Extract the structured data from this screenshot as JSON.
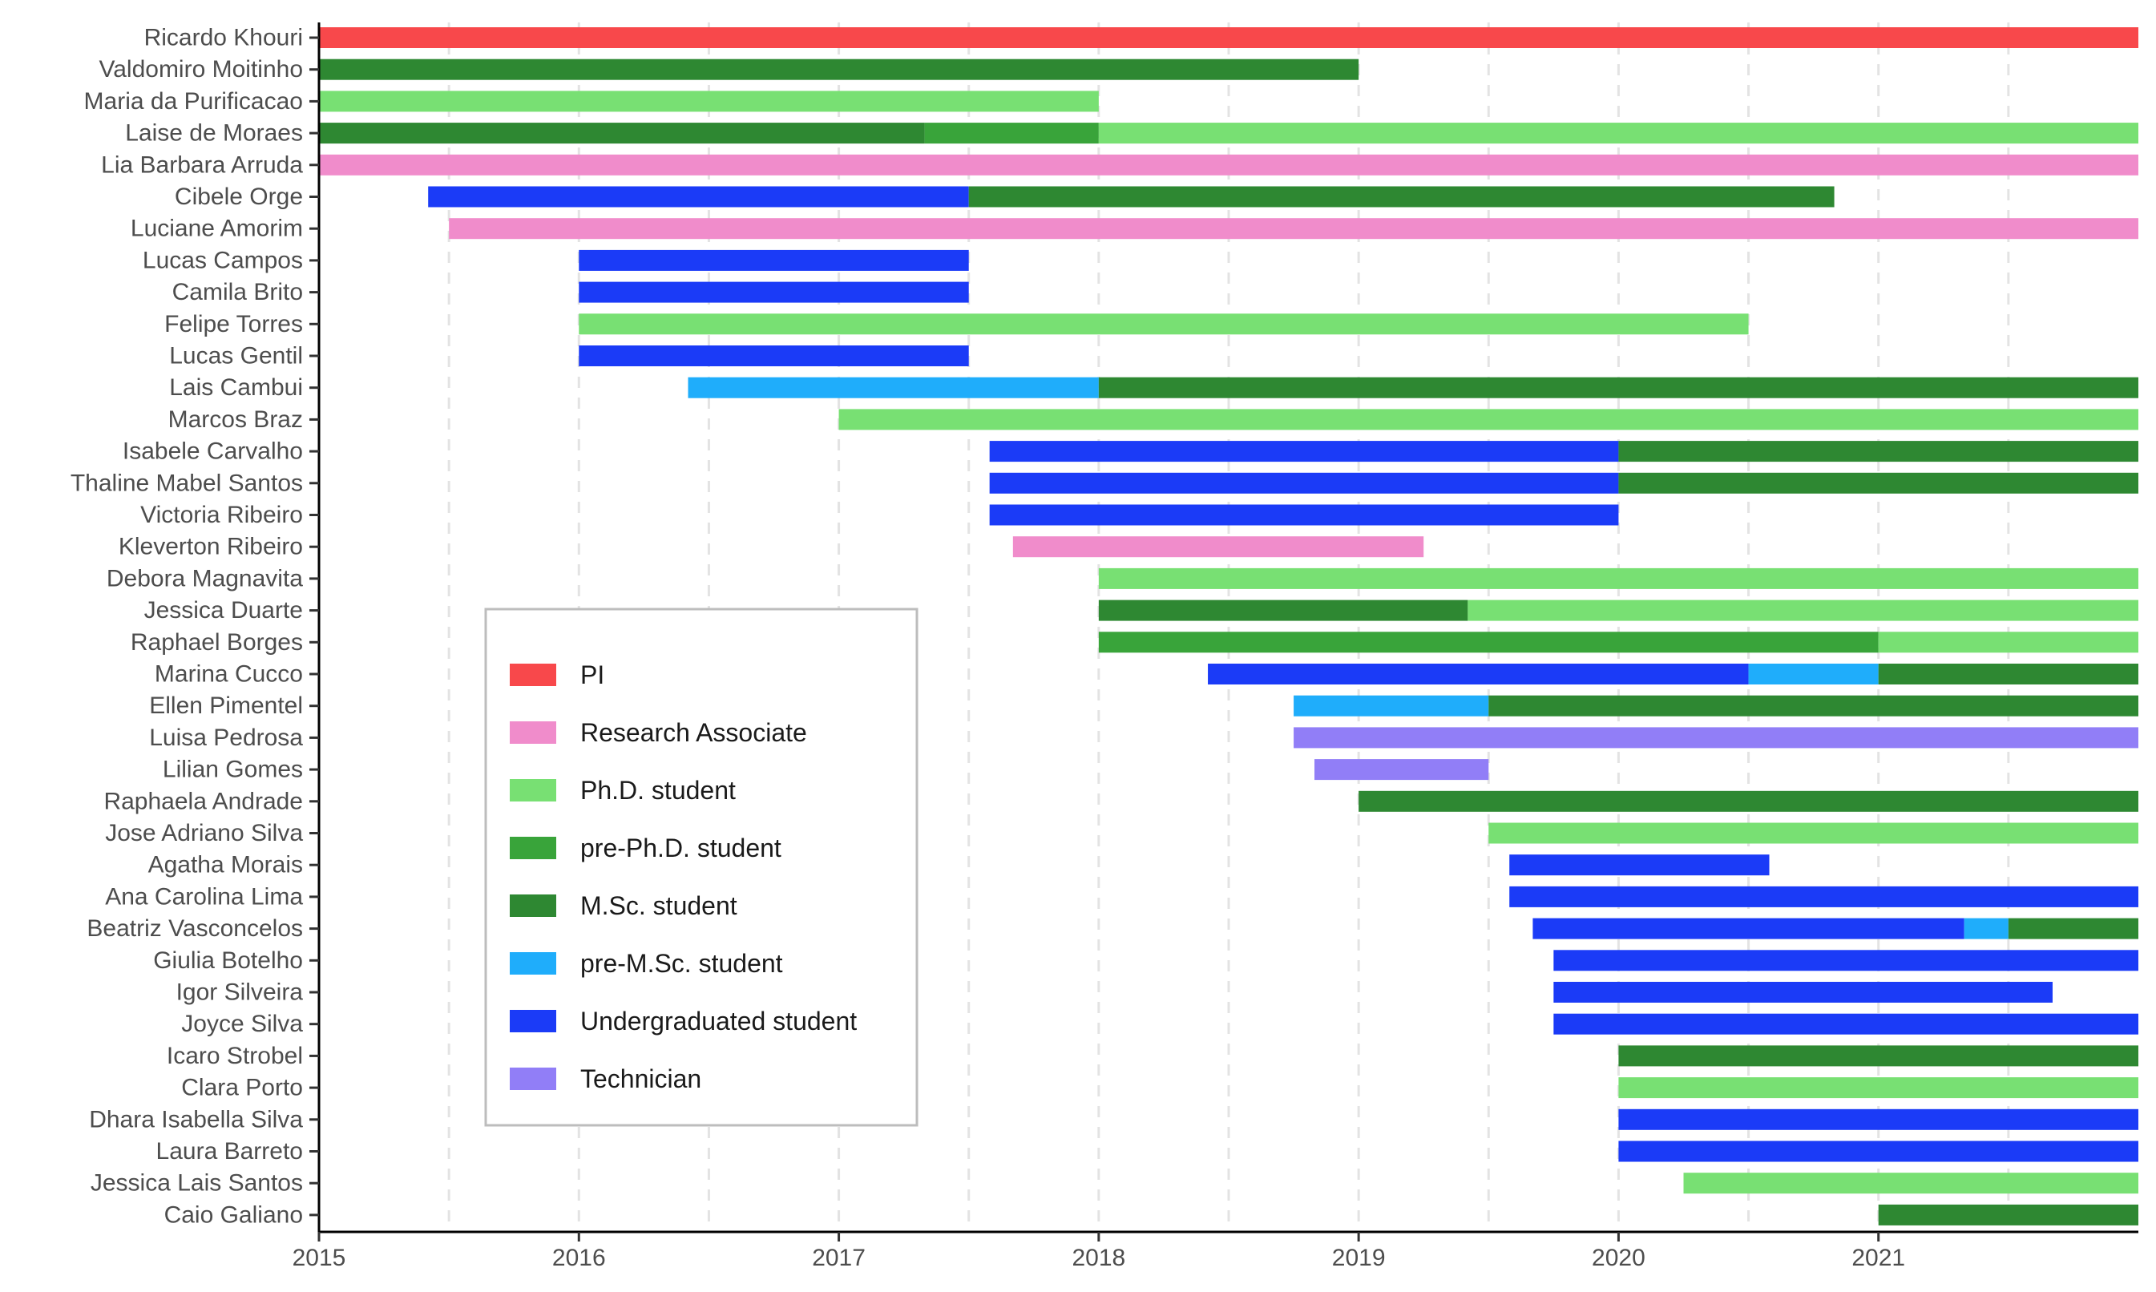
{
  "chart_data": {
    "type": "gantt",
    "title": "",
    "xlabel": "",
    "ylabel": "",
    "xlim": [
      2015,
      2022
    ],
    "x_ticks": [
      "2015",
      "2016",
      "2017",
      "2018",
      "2019",
      "2020",
      "2021"
    ],
    "grid": "vertical dashed at half-years",
    "legend_position": "bottom-left",
    "roles": [
      {
        "key": "pi",
        "label": "PI",
        "color": "#f8484b"
      },
      {
        "key": "ra",
        "label": "Research Associate",
        "color": "#f08ccb"
      },
      {
        "key": "phd",
        "label": "Ph.D. student",
        "color": "#78e073"
      },
      {
        "key": "prephd",
        "label": "pre-Ph.D. student",
        "color": "#39a43a"
      },
      {
        "key": "msc",
        "label": "M.Sc. student",
        "color": "#2e8832"
      },
      {
        "key": "premsc",
        "label": "pre-M.Sc. student",
        "color": "#1fadfb"
      },
      {
        "key": "ug",
        "label": "Undergraduated student",
        "color": "#1b3bf7"
      },
      {
        "key": "tech",
        "label": "Technician",
        "color": "#917ef7"
      }
    ],
    "people": [
      {
        "name": "Ricardo Khouri",
        "segments": [
          {
            "role": "pi",
            "start": 2015.0,
            "end": 2022.0
          }
        ]
      },
      {
        "name": "Valdomiro Moitinho",
        "segments": [
          {
            "role": "msc",
            "start": 2015.0,
            "end": 2019.0
          }
        ]
      },
      {
        "name": "Maria da Purificacao",
        "segments": [
          {
            "role": "phd",
            "start": 2015.0,
            "end": 2018.0
          }
        ]
      },
      {
        "name": "Laise de Moraes",
        "segments": [
          {
            "role": "msc",
            "start": 2015.0,
            "end": 2017.33
          },
          {
            "role": "prephd",
            "start": 2017.33,
            "end": 2018.0
          },
          {
            "role": "phd",
            "start": 2018.0,
            "end": 2022.0
          }
        ]
      },
      {
        "name": "Lia Barbara Arruda",
        "segments": [
          {
            "role": "ra",
            "start": 2015.0,
            "end": 2022.0
          }
        ]
      },
      {
        "name": "Cibele Orge",
        "segments": [
          {
            "role": "ug",
            "start": 2015.42,
            "end": 2017.5
          },
          {
            "role": "msc",
            "start": 2017.5,
            "end": 2020.83
          }
        ]
      },
      {
        "name": "Luciane Amorim",
        "segments": [
          {
            "role": "ra",
            "start": 2015.5,
            "end": 2022.0
          }
        ]
      },
      {
        "name": "Lucas Campos",
        "segments": [
          {
            "role": "ug",
            "start": 2016.0,
            "end": 2017.5
          }
        ]
      },
      {
        "name": "Camila Brito",
        "segments": [
          {
            "role": "ug",
            "start": 2016.0,
            "end": 2017.5
          }
        ]
      },
      {
        "name": "Felipe Torres",
        "segments": [
          {
            "role": "phd",
            "start": 2016.0,
            "end": 2020.5
          }
        ]
      },
      {
        "name": "Lucas Gentil",
        "segments": [
          {
            "role": "ug",
            "start": 2016.0,
            "end": 2017.5
          }
        ]
      },
      {
        "name": "Lais Cambui",
        "segments": [
          {
            "role": "premsc",
            "start": 2016.42,
            "end": 2018.0
          },
          {
            "role": "msc",
            "start": 2018.0,
            "end": 2022.0
          }
        ]
      },
      {
        "name": "Marcos Braz",
        "segments": [
          {
            "role": "phd",
            "start": 2017.0,
            "end": 2022.0
          }
        ]
      },
      {
        "name": "Isabele Carvalho",
        "segments": [
          {
            "role": "ug",
            "start": 2017.58,
            "end": 2020.0
          },
          {
            "role": "msc",
            "start": 2020.0,
            "end": 2022.0
          }
        ]
      },
      {
        "name": "Thaline Mabel Santos",
        "segments": [
          {
            "role": "ug",
            "start": 2017.58,
            "end": 2020.0
          },
          {
            "role": "msc",
            "start": 2020.0,
            "end": 2022.0
          }
        ]
      },
      {
        "name": "Victoria Ribeiro",
        "segments": [
          {
            "role": "ug",
            "start": 2017.58,
            "end": 2020.0
          }
        ]
      },
      {
        "name": "Kleverton Ribeiro",
        "segments": [
          {
            "role": "ra",
            "start": 2017.67,
            "end": 2019.25
          }
        ]
      },
      {
        "name": "Debora Magnavita",
        "segments": [
          {
            "role": "phd",
            "start": 2018.0,
            "end": 2022.0
          }
        ]
      },
      {
        "name": "Jessica Duarte",
        "segments": [
          {
            "role": "msc",
            "start": 2018.0,
            "end": 2019.42
          },
          {
            "role": "phd",
            "start": 2019.42,
            "end": 2022.0
          }
        ]
      },
      {
        "name": "Raphael Borges",
        "segments": [
          {
            "role": "prephd",
            "start": 2018.0,
            "end": 2021.0
          },
          {
            "role": "phd",
            "start": 2021.0,
            "end": 2022.0
          }
        ]
      },
      {
        "name": "Marina Cucco",
        "segments": [
          {
            "role": "ug",
            "start": 2018.42,
            "end": 2020.5
          },
          {
            "role": "premsc",
            "start": 2020.5,
            "end": 2021.0
          },
          {
            "role": "msc",
            "start": 2021.0,
            "end": 2022.0
          }
        ]
      },
      {
        "name": "Ellen Pimentel",
        "segments": [
          {
            "role": "premsc",
            "start": 2018.75,
            "end": 2019.5
          },
          {
            "role": "msc",
            "start": 2019.5,
            "end": 2022.0
          }
        ]
      },
      {
        "name": "Luisa Pedrosa",
        "segments": [
          {
            "role": "tech",
            "start": 2018.75,
            "end": 2022.0
          }
        ]
      },
      {
        "name": "Lilian Gomes",
        "segments": [
          {
            "role": "tech",
            "start": 2018.83,
            "end": 2019.5
          }
        ]
      },
      {
        "name": "Raphaela Andrade",
        "segments": [
          {
            "role": "msc",
            "start": 2019.0,
            "end": 2022.0
          }
        ]
      },
      {
        "name": "Jose Adriano Silva",
        "segments": [
          {
            "role": "phd",
            "start": 2019.5,
            "end": 2022.0
          }
        ]
      },
      {
        "name": "Agatha Morais",
        "segments": [
          {
            "role": "ug",
            "start": 2019.58,
            "end": 2020.58
          }
        ]
      },
      {
        "name": "Ana Carolina Lima",
        "segments": [
          {
            "role": "ug",
            "start": 2019.58,
            "end": 2022.0
          }
        ]
      },
      {
        "name": "Beatriz Vasconcelos",
        "segments": [
          {
            "role": "ug",
            "start": 2019.67,
            "end": 2021.33
          },
          {
            "role": "premsc",
            "start": 2021.33,
            "end": 2021.5
          },
          {
            "role": "msc",
            "start": 2021.5,
            "end": 2022.0
          }
        ]
      },
      {
        "name": "Giulia Botelho",
        "segments": [
          {
            "role": "ug",
            "start": 2019.75,
            "end": 2022.0
          }
        ]
      },
      {
        "name": "Igor Silveira",
        "segments": [
          {
            "role": "ug",
            "start": 2019.75,
            "end": 2021.67
          }
        ]
      },
      {
        "name": "Joyce Silva",
        "segments": [
          {
            "role": "ug",
            "start": 2019.75,
            "end": 2022.0
          }
        ]
      },
      {
        "name": "Icaro Strobel",
        "segments": [
          {
            "role": "msc",
            "start": 2020.0,
            "end": 2022.0
          }
        ]
      },
      {
        "name": "Clara Porto",
        "segments": [
          {
            "role": "phd",
            "start": 2020.0,
            "end": 2022.0
          }
        ]
      },
      {
        "name": "Dhara Isabella Silva",
        "segments": [
          {
            "role": "ug",
            "start": 2020.0,
            "end": 2022.0
          }
        ]
      },
      {
        "name": "Laura Barreto",
        "segments": [
          {
            "role": "ug",
            "start": 2020.0,
            "end": 2022.0
          }
        ]
      },
      {
        "name": "Jessica Lais Santos",
        "segments": [
          {
            "role": "phd",
            "start": 2020.25,
            "end": 2022.0
          }
        ]
      },
      {
        "name": "Caio Galiano",
        "segments": [
          {
            "role": "msc",
            "start": 2021.0,
            "end": 2022.0
          }
        ]
      }
    ]
  }
}
